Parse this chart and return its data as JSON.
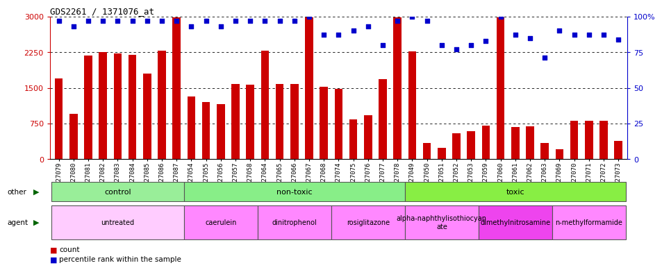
{
  "title": "GDS2261 / 1371076_at",
  "samples": [
    "GSM127079",
    "GSM127080",
    "GSM127081",
    "GSM127082",
    "GSM127083",
    "GSM127084",
    "GSM127085",
    "GSM127086",
    "GSM127087",
    "GSM127054",
    "GSM127055",
    "GSM127056",
    "GSM127057",
    "GSM127058",
    "GSM127064",
    "GSM127065",
    "GSM127066",
    "GSM127067",
    "GSM127068",
    "GSM127074",
    "GSM127075",
    "GSM127076",
    "GSM127077",
    "GSM127078",
    "GSM127049",
    "GSM127050",
    "GSM127051",
    "GSM127052",
    "GSM127053",
    "GSM127059",
    "GSM127060",
    "GSM127061",
    "GSM127062",
    "GSM127063",
    "GSM127069",
    "GSM127070",
    "GSM127071",
    "GSM127072",
    "GSM127073"
  ],
  "counts": [
    1700,
    950,
    2180,
    2250,
    2220,
    2200,
    1800,
    2280,
    2980,
    1320,
    1200,
    1160,
    1580,
    1560,
    2280,
    1580,
    1580,
    2980,
    1520,
    1480,
    840,
    930,
    1680,
    2980,
    2260,
    340,
    230,
    550,
    590,
    700,
    2980,
    680,
    690,
    340,
    215,
    800,
    800,
    800,
    380
  ],
  "percentiles": [
    97,
    93,
    97,
    97,
    97,
    97,
    97,
    97,
    97,
    93,
    97,
    93,
    97,
    97,
    97,
    97,
    97,
    100,
    87,
    87,
    90,
    93,
    80,
    97,
    100,
    97,
    80,
    77,
    80,
    83,
    100,
    87,
    85,
    71,
    90,
    87,
    87,
    87,
    84
  ],
  "bar_color": "#cc0000",
  "dot_color": "#0000cc",
  "ylim_left": [
    0,
    3000
  ],
  "ylim_right": [
    0,
    100
  ],
  "yticks_left": [
    0,
    750,
    1500,
    2250,
    3000
  ],
  "yticks_right": [
    0,
    25,
    50,
    75,
    100
  ],
  "groups_other": [
    {
      "label": "control",
      "start": 0,
      "end": 9,
      "color": "#99ee99"
    },
    {
      "label": "non-toxic",
      "start": 9,
      "end": 24,
      "color": "#88ee88"
    },
    {
      "label": "toxic",
      "start": 24,
      "end": 39,
      "color": "#88ee44"
    }
  ],
  "groups_agent": [
    {
      "label": "untreated",
      "start": 0,
      "end": 9,
      "color": "#ffccff"
    },
    {
      "label": "caerulein",
      "start": 9,
      "end": 14,
      "color": "#ff88ff"
    },
    {
      "label": "dinitrophenol",
      "start": 14,
      "end": 19,
      "color": "#ff88ff"
    },
    {
      "label": "rosiglitazone",
      "start": 19,
      "end": 24,
      "color": "#ff88ff"
    },
    {
      "label": "alpha-naphthylisothiocyan\nate",
      "start": 24,
      "end": 29,
      "color": "#ff88ff"
    },
    {
      "label": "dimethylnitrosamine",
      "start": 29,
      "end": 34,
      "color": "#ee44ee"
    },
    {
      "label": "n-methylformamide",
      "start": 34,
      "end": 39,
      "color": "#ff88ff"
    }
  ],
  "background_color": "#ffffff",
  "tick_label_fontsize": 6.5,
  "bar_width": 0.55
}
